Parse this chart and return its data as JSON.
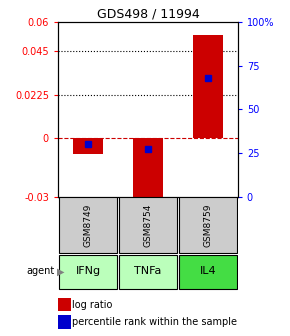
{
  "title": "GDS498 / 11994",
  "samples": [
    "GSM8749",
    "GSM8754",
    "GSM8759"
  ],
  "agents": [
    "IFNg",
    "TNFa",
    "IL4"
  ],
  "log_ratios": [
    -0.008,
    -0.034,
    0.053
  ],
  "percentile_ranks": [
    0.3,
    0.27,
    0.68
  ],
  "ylim_left": [
    -0.03,
    0.06
  ],
  "ylim_right": [
    0.0,
    1.0
  ],
  "yticks_left": [
    -0.03,
    0.0,
    0.0225,
    0.045,
    0.06
  ],
  "yticks_left_labels": [
    "-0.03",
    "0",
    "0.0225",
    "0.045",
    "0.06"
  ],
  "yticks_right": [
    0.0,
    0.25,
    0.5,
    0.75,
    1.0
  ],
  "yticks_right_labels": [
    "0",
    "25",
    "50",
    "75",
    "100%"
  ],
  "hlines": [
    0.045,
    0.0225
  ],
  "bar_color": "#cc0000",
  "point_color": "#0000cc",
  "agent_colors": [
    "#bbffbb",
    "#bbffbb",
    "#44dd44"
  ],
  "sample_bg": "#cccccc",
  "bar_width": 0.5
}
